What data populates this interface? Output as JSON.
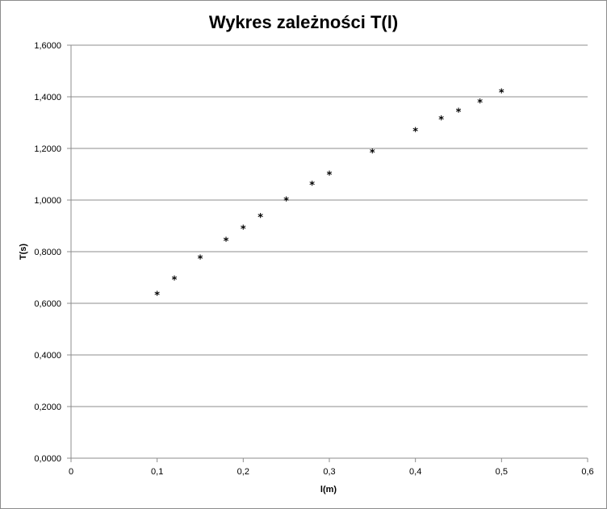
{
  "chart_data": {
    "type": "scatter",
    "title": "Wykres zależności T(l)",
    "xlabel": "l(m)",
    "ylabel": "T(s)",
    "xlim": [
      0,
      0.6
    ],
    "ylim": [
      0,
      1.6
    ],
    "x_ticks": [
      "0",
      "0,1",
      "0,2",
      "0,3",
      "0,4",
      "0,5",
      "0,6"
    ],
    "y_ticks": [
      "0,0000",
      "0,2000",
      "0,4000",
      "0,6000",
      "0,8000",
      "1,0000",
      "1,2000",
      "1,4000",
      "1,6000"
    ],
    "grid": "horizontal",
    "legend": "none",
    "marker": "*",
    "series": [
      {
        "points": [
          {
            "x": 0.1,
            "y": 0.636
          },
          {
            "x": 0.12,
            "y": 0.695
          },
          {
            "x": 0.15,
            "y": 0.777
          },
          {
            "x": 0.18,
            "y": 0.845
          },
          {
            "x": 0.2,
            "y": 0.892
          },
          {
            "x": 0.22,
            "y": 0.938
          },
          {
            "x": 0.25,
            "y": 1.001
          },
          {
            "x": 0.28,
            "y": 1.062
          },
          {
            "x": 0.3,
            "y": 1.101
          },
          {
            "x": 0.35,
            "y": 1.188
          },
          {
            "x": 0.4,
            "y": 1.27
          },
          {
            "x": 0.43,
            "y": 1.316
          },
          {
            "x": 0.45,
            "y": 1.345
          },
          {
            "x": 0.475,
            "y": 1.382
          },
          {
            "x": 0.5,
            "y": 1.42
          }
        ]
      }
    ]
  }
}
